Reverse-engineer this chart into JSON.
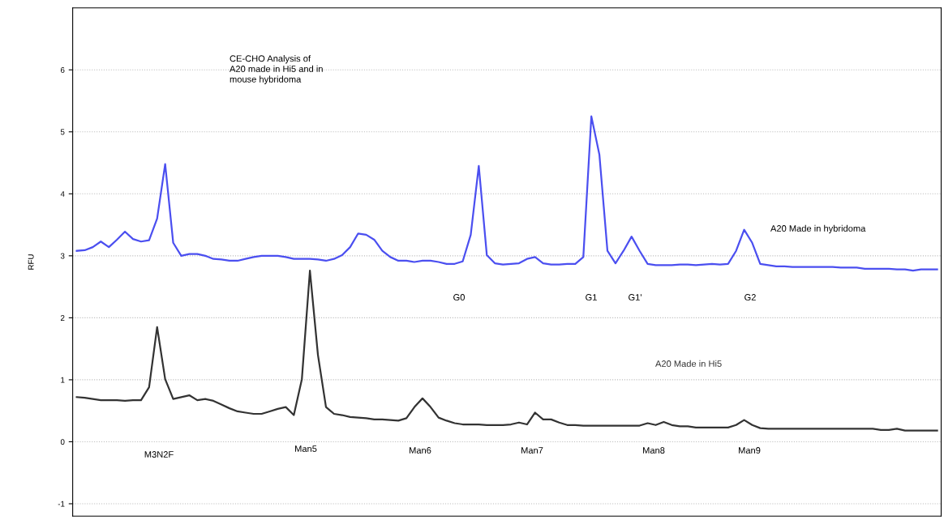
{
  "chart_data": {
    "type": "line",
    "ylabel": "RFU",
    "ylim": [
      -1.2,
      7.0
    ],
    "yticks": [
      -1,
      0,
      1,
      2,
      3,
      4,
      5,
      6
    ],
    "grid": "y",
    "tick_labels": "y",
    "marker": "none",
    "line_style": "solid",
    "legend": false,
    "categories": [
      null,
      null,
      null,
      null,
      null,
      null,
      null,
      null,
      null,
      null,
      null,
      null,
      null,
      null,
      null,
      null,
      null,
      null,
      null,
      null,
      null,
      null,
      null,
      null,
      null,
      null,
      null,
      null,
      null,
      null,
      null,
      null,
      null,
      null,
      null,
      null,
      null,
      null,
      null,
      null,
      null,
      null,
      null,
      null,
      null,
      null,
      null,
      null,
      null,
      null,
      null,
      null,
      null,
      null,
      null,
      null,
      null,
      null,
      null,
      null,
      null,
      null,
      null,
      null,
      null,
      null,
      null,
      null,
      null,
      null,
      null,
      null,
      null,
      null,
      null,
      null,
      null,
      null,
      null,
      null,
      null,
      null,
      null,
      null,
      null,
      null,
      null,
      null,
      null,
      null,
      null,
      null,
      null,
      null,
      null,
      null,
      null,
      null,
      null,
      null,
      null,
      null,
      null,
      null,
      null,
      null,
      null,
      null
    ],
    "series": [
      {
        "name": "A20 Made in hybridoma",
        "color": "#4b4ff0",
        "values": [
          3.08,
          3.09,
          3.14,
          3.23,
          3.14,
          3.26,
          3.39,
          3.27,
          3.23,
          3.25,
          3.6,
          4.48,
          3.21,
          3.0,
          3.03,
          3.03,
          3.0,
          2.95,
          2.94,
          2.92,
          2.92,
          2.95,
          2.98,
          3.0,
          3.0,
          3.0,
          2.98,
          2.95,
          2.95,
          2.95,
          2.94,
          2.92,
          2.95,
          3.01,
          3.14,
          3.36,
          3.34,
          3.26,
          3.08,
          2.98,
          2.92,
          2.92,
          2.9,
          2.92,
          2.92,
          2.9,
          2.87,
          2.87,
          2.91,
          3.34,
          4.45,
          3.01,
          2.88,
          2.86,
          2.87,
          2.88,
          2.95,
          2.98,
          2.88,
          2.86,
          2.86,
          2.87,
          2.87,
          2.98,
          5.25,
          4.63,
          3.08,
          2.88,
          3.08,
          3.31,
          3.08,
          2.87,
          2.85,
          2.85,
          2.85,
          2.86,
          2.86,
          2.85,
          2.86,
          2.87,
          2.86,
          2.87,
          3.08,
          3.42,
          3.21,
          2.87,
          2.85,
          2.83,
          2.83,
          2.82,
          2.82,
          2.82,
          2.82,
          2.82,
          2.82,
          2.81,
          2.81,
          2.81,
          2.79,
          2.79,
          2.79,
          2.79,
          2.78,
          2.78,
          2.76,
          2.78,
          2.78,
          2.78
        ]
      },
      {
        "name": "A20 Made in Hi5",
        "color": "#333333",
        "values": [
          0.72,
          0.71,
          0.69,
          0.67,
          0.67,
          0.67,
          0.66,
          0.67,
          0.67,
          0.88,
          1.85,
          1.01,
          0.69,
          0.72,
          0.75,
          0.67,
          0.69,
          0.66,
          0.6,
          0.54,
          0.49,
          0.47,
          0.45,
          0.45,
          0.49,
          0.53,
          0.56,
          0.43,
          1.01,
          2.76,
          1.4,
          0.56,
          0.45,
          0.43,
          0.4,
          0.39,
          0.38,
          0.36,
          0.36,
          0.35,
          0.34,
          0.38,
          0.56,
          0.7,
          0.56,
          0.39,
          0.34,
          0.3,
          0.28,
          0.28,
          0.28,
          0.27,
          0.27,
          0.27,
          0.28,
          0.31,
          0.28,
          0.47,
          0.36,
          0.36,
          0.31,
          0.27,
          0.27,
          0.26,
          0.26,
          0.26,
          0.26,
          0.26,
          0.26,
          0.26,
          0.26,
          0.3,
          0.27,
          0.32,
          0.27,
          0.25,
          0.25,
          0.23,
          0.23,
          0.23,
          0.23,
          0.23,
          0.27,
          0.35,
          0.27,
          0.22,
          0.21,
          0.21,
          0.21,
          0.21,
          0.21,
          0.21,
          0.21,
          0.21,
          0.21,
          0.21,
          0.21,
          0.21,
          0.21,
          0.21,
          0.19,
          0.19,
          0.21,
          0.18,
          0.18,
          0.18,
          0.18,
          0.18
        ]
      }
    ],
    "annotations": [
      "CE-CHO Analysis of\nA20 made in Hi5 and in\nmouse hybridoma",
      "G0",
      "G1",
      "G1'",
      "G2",
      "M3N2F",
      "Man5",
      "Man6",
      "Man7",
      "Man8",
      "Man9"
    ]
  }
}
